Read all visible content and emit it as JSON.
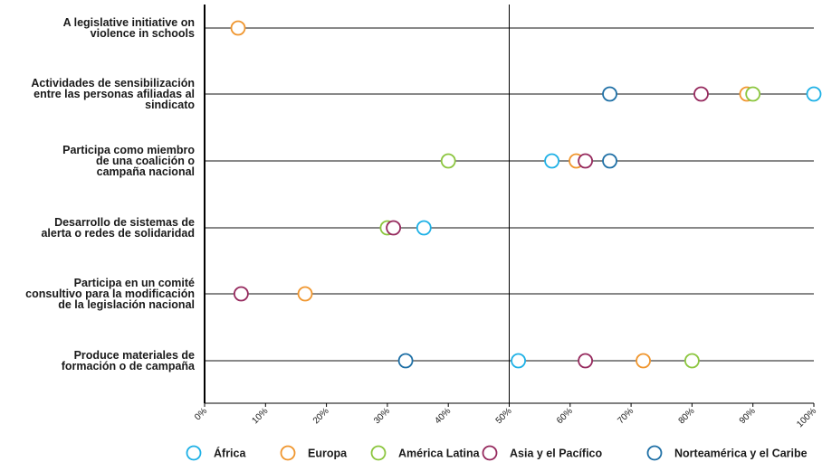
{
  "chart_data": {
    "type": "scatter",
    "orientation": "horizontal-dot-plot",
    "title": "",
    "xlabel": "",
    "ylabel": "",
    "xlim": [
      0,
      100
    ],
    "x_ticks": [
      "0%",
      "10%",
      "20%",
      "30%",
      "40%",
      "50%",
      "60%",
      "70%",
      "80%",
      "90%",
      "100%"
    ],
    "x_tick_values": [
      0,
      10,
      20,
      30,
      40,
      50,
      60,
      70,
      80,
      90,
      100
    ],
    "reference_line": 50,
    "grid": false,
    "legend_position": "bottom",
    "categories": [
      [
        "A legislative initiative on",
        "violence in schools"
      ],
      [
        "Actividades de sensibilización",
        "entre las personas afiliadas al",
        "sindicato"
      ],
      [
        "Participa como miembro",
        "de una coalición o",
        "campaña nacional"
      ],
      [
        "Desarrollo de sistemas de",
        "alerta o redes de solidaridad"
      ],
      [
        "Participa en un comité",
        "consultivo para la modificación",
        "de la legislación nacional"
      ],
      [
        "Produce materiales de",
        "formación o de campaña"
      ]
    ],
    "series": [
      {
        "name": "África",
        "color": "#1fb1e6",
        "values": [
          null,
          100,
          57,
          36,
          null,
          51.5
        ]
      },
      {
        "name": "Europa",
        "color": "#f0962e",
        "values": [
          5.5,
          89,
          61,
          null,
          16.5,
          72
        ]
      },
      {
        "name": "América Latina",
        "color": "#8cc63f",
        "values": [
          null,
          90,
          40,
          30,
          null,
          80
        ]
      },
      {
        "name": "Asia y el Pacífico",
        "color": "#962a5e",
        "values": [
          null,
          81.5,
          62.5,
          31,
          6,
          62.5
        ]
      },
      {
        "name": "Norteamérica y el Caribe",
        "color": "#1f70a6",
        "values": [
          null,
          66.5,
          66.5,
          null,
          null,
          33
        ]
      }
    ]
  }
}
